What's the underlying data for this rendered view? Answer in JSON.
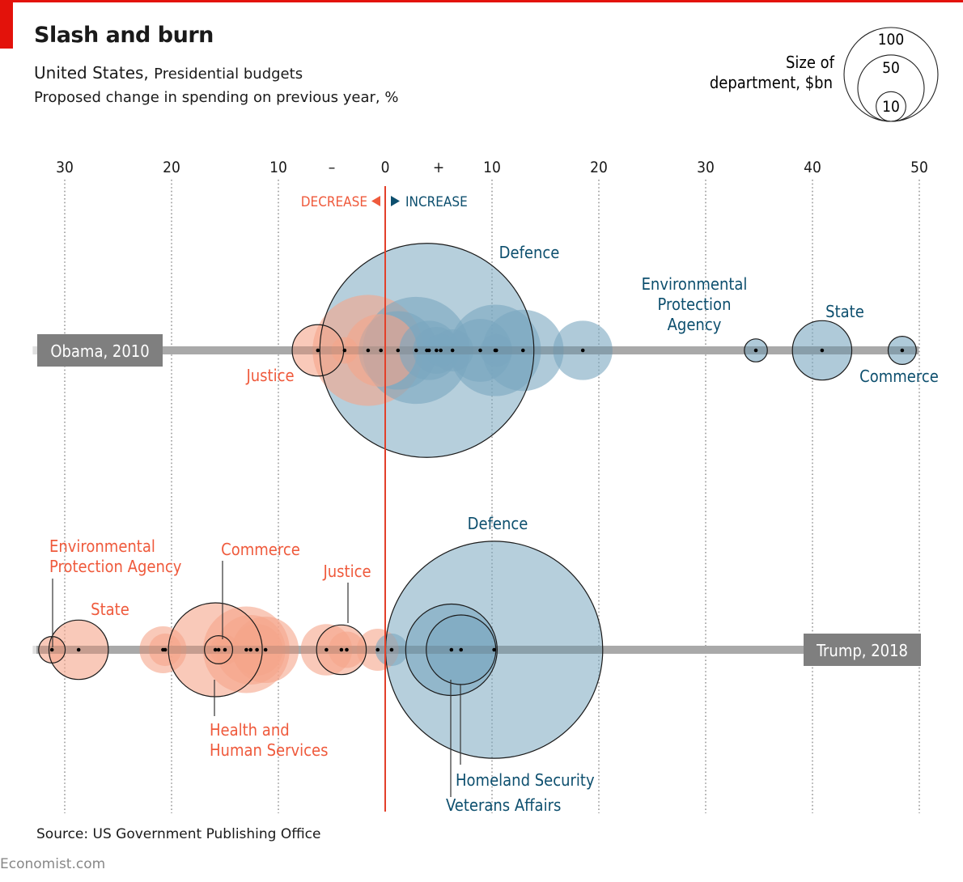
{
  "header": {
    "title": "Slash and burn",
    "subtitle_main": "United States,",
    "subtitle_small": "Presidential budgets",
    "subtitle2": "Proposed change in spending on previous year, %"
  },
  "legend": {
    "label_line1": "Size of",
    "label_line2": "department, $bn",
    "sizes": [
      100,
      50,
      10
    ]
  },
  "axis": {
    "ticks": [
      {
        "value": -30,
        "label": "30"
      },
      {
        "value": -20,
        "label": "20"
      },
      {
        "value": -10,
        "label": "10"
      },
      {
        "value": -5,
        "label": "–",
        "sign": true
      },
      {
        "value": 0,
        "label": "0"
      },
      {
        "value": 5,
        "label": "+",
        "sign": true
      },
      {
        "value": 10,
        "label": "10"
      },
      {
        "value": 20,
        "label": "20"
      },
      {
        "value": 30,
        "label": "30"
      },
      {
        "value": 40,
        "label": "40"
      },
      {
        "value": 50,
        "label": "50"
      }
    ],
    "gridlines": [
      -30,
      -20,
      -10,
      10,
      20,
      30,
      40,
      50
    ],
    "decrease_label": "DECREASE",
    "increase_label": "INCREASE"
  },
  "colors": {
    "decrease_fill": "#f5a58a",
    "decrease_text": "#ef5a3c",
    "increase_fill": "#7aa7bf",
    "increase_text": "#0d4f6e",
    "zero_line": "#e3402a",
    "track": "#bcbcbc",
    "row_label_bg": "#7f7f7f"
  },
  "chart_data": {
    "type": "scatter",
    "title": "Slash and burn",
    "xlabel": "Proposed change in spending on previous year, %",
    "xlim": [
      -32,
      50
    ],
    "size_unit": "$bn",
    "rows": [
      {
        "name": "Obama, 2010",
        "points": [
          {
            "x": -6.3,
            "size": 30,
            "label": "Justice",
            "outlined": true
          },
          {
            "x": -3.8,
            "size": 8
          },
          {
            "x": -1.6,
            "size": 140
          },
          {
            "x": -0.4,
            "size": 60
          },
          {
            "x": 1.2,
            "size": 70
          },
          {
            "x": 2.9,
            "size": 130
          },
          {
            "x": 4.1,
            "size": 40
          },
          {
            "x": 4.8,
            "size": 25
          },
          {
            "x": 5.2,
            "size": 12
          },
          {
            "x": 6.3,
            "size": 20
          },
          {
            "x": 8.9,
            "size": 45
          },
          {
            "x": 10.3,
            "size": 95
          },
          {
            "x": 10.4,
            "size": 12
          },
          {
            "x": 12.9,
            "size": 75
          },
          {
            "x": 3.9,
            "size": 520,
            "label": "Defence",
            "outlined": true
          },
          {
            "x": 18.5,
            "size": 40
          },
          {
            "x": 34.7,
            "size": 6,
            "label": "Environmental Protection Agency",
            "outlined": true
          },
          {
            "x": 40.9,
            "size": 40,
            "label": "State",
            "outlined": true
          },
          {
            "x": 48.4,
            "size": 9,
            "label": "Commerce",
            "outlined": true
          }
        ]
      },
      {
        "name": "Trump, 2018",
        "points": [
          {
            "x": -31.2,
            "size": 8,
            "label": "Environmental Protection Agency",
            "outlined": true
          },
          {
            "x": -28.7,
            "size": 40,
            "label": "State",
            "outlined": true
          },
          {
            "x": -20.8,
            "size": 25
          },
          {
            "x": -20.6,
            "size": 12
          },
          {
            "x": -15.9,
            "size": 100,
            "label": "Health and Human Services",
            "outlined": true
          },
          {
            "x": -15.6,
            "size": 9,
            "label": "Commerce",
            "outlined": true
          },
          {
            "x": -15.0,
            "size": 10
          },
          {
            "x": -13.0,
            "size": 85
          },
          {
            "x": -12.6,
            "size": 55
          },
          {
            "x": -12.0,
            "size": 30
          },
          {
            "x": -11.2,
            "size": 50
          },
          {
            "x": -5.5,
            "size": 30
          },
          {
            "x": -4.1,
            "size": 28,
            "label": "Justice",
            "outlined": true
          },
          {
            "x": -3.6,
            "size": 15
          },
          {
            "x": -0.7,
            "size": 20
          },
          {
            "x": 0.6,
            "size": 12
          },
          {
            "x": 10.2,
            "size": 535,
            "label": "Defence",
            "outlined": true
          },
          {
            "x": 6.2,
            "size": 95,
            "label": "Veterans Affairs",
            "outlined": true
          },
          {
            "x": 7.1,
            "size": 55,
            "label": "Homeland Security",
            "outlined": true
          }
        ]
      }
    ]
  },
  "footer": {
    "source": "Source: US Government Publishing Office",
    "brand": "Economist.com"
  }
}
